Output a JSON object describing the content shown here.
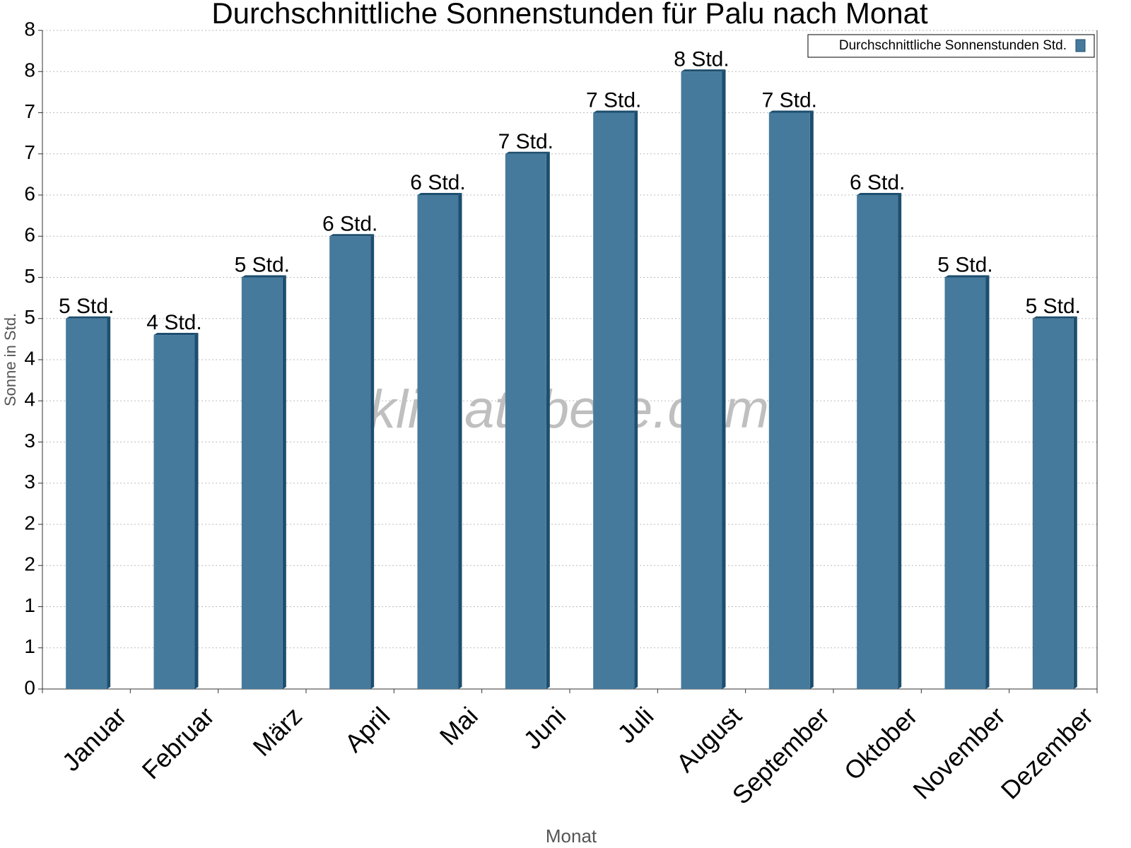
{
  "chart_data": {
    "type": "bar",
    "title": "Durchschnittliche Sonnenstunden für Palu nach Monat",
    "x_label": "Monat",
    "y_label": "Sonne in Std.",
    "watermark": "klimatabelle.com",
    "categories": [
      "Januar",
      "Februar",
      "März",
      "April",
      "Mai",
      "Juni",
      "Juli",
      "August",
      "September",
      "Oktober",
      "November",
      "Dezember"
    ],
    "series": [
      {
        "name": "Durchschnittliche Sonnenstunden Std.",
        "color": "#467a9c",
        "values": [
          4.5,
          4.3,
          5.0,
          5.5,
          6.0,
          6.5,
          7.0,
          7.5,
          7.0,
          6.0,
          5.0,
          4.5
        ],
        "value_labels": [
          "5 Std.",
          "4 Std.",
          "5 Std.",
          "6 Std.",
          "6 Std.",
          "7 Std.",
          "7 Std.",
          "8 Std.",
          "7 Std.",
          "6 Std.",
          "5 Std.",
          "5 Std."
        ]
      }
    ],
    "ylim": [
      0,
      8
    ],
    "yticks": [
      0,
      {
        "value": 0.5,
        "label": "1"
      },
      1,
      {
        "value": 1.5,
        "label": "2"
      },
      2,
      {
        "value": 2.5,
        "label": "3"
      },
      3,
      {
        "value": 3.5,
        "label": "4"
      },
      4,
      {
        "value": 4.5,
        "label": "5"
      },
      5,
      {
        "value": 5.5,
        "label": "6"
      },
      6,
      {
        "value": 6.5,
        "label": "7"
      },
      7,
      {
        "value": 7.5,
        "label": "8"
      },
      8
    ],
    "grid": true,
    "legend_position": "top-right"
  }
}
